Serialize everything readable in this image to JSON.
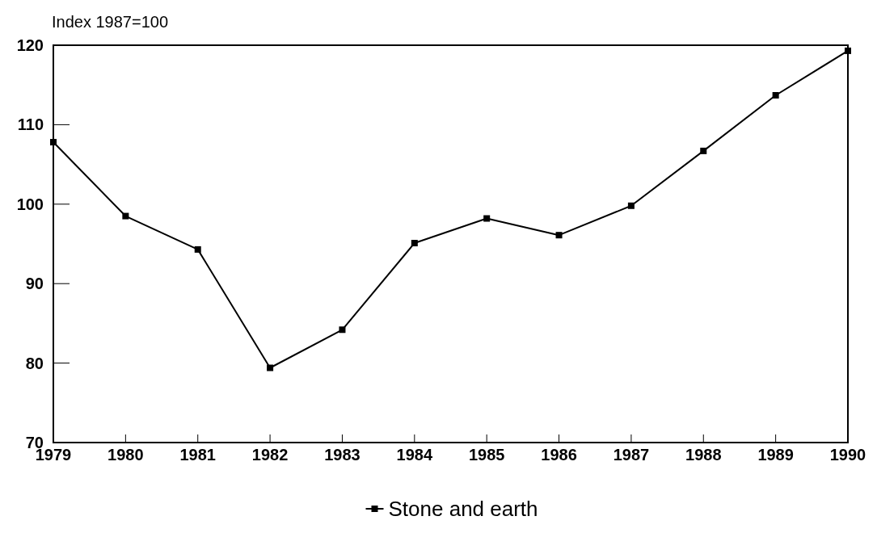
{
  "chart_data": {
    "type": "line",
    "ylabel": "Index 1987=100",
    "x": [
      1979,
      1980,
      1981,
      1982,
      1983,
      1984,
      1985,
      1986,
      1987,
      1988,
      1989,
      1990
    ],
    "xlim": [
      1979,
      1990
    ],
    "xticks": [
      1979,
      1980,
      1981,
      1982,
      1983,
      1984,
      1985,
      1986,
      1987,
      1988,
      1989,
      1990
    ],
    "ylim": [
      70,
      120
    ],
    "yticks": [
      70,
      80,
      90,
      100,
      110,
      120
    ],
    "series": [
      {
        "name": "Stone and earth",
        "color": "#000000",
        "values": [
          107.8,
          98.5,
          94.3,
          79.4,
          84.2,
          95.1,
          98.2,
          96.1,
          99.8,
          106.7,
          113.7,
          119.3
        ]
      }
    ],
    "marker": "square",
    "legend": "bottom",
    "grid": false
  }
}
